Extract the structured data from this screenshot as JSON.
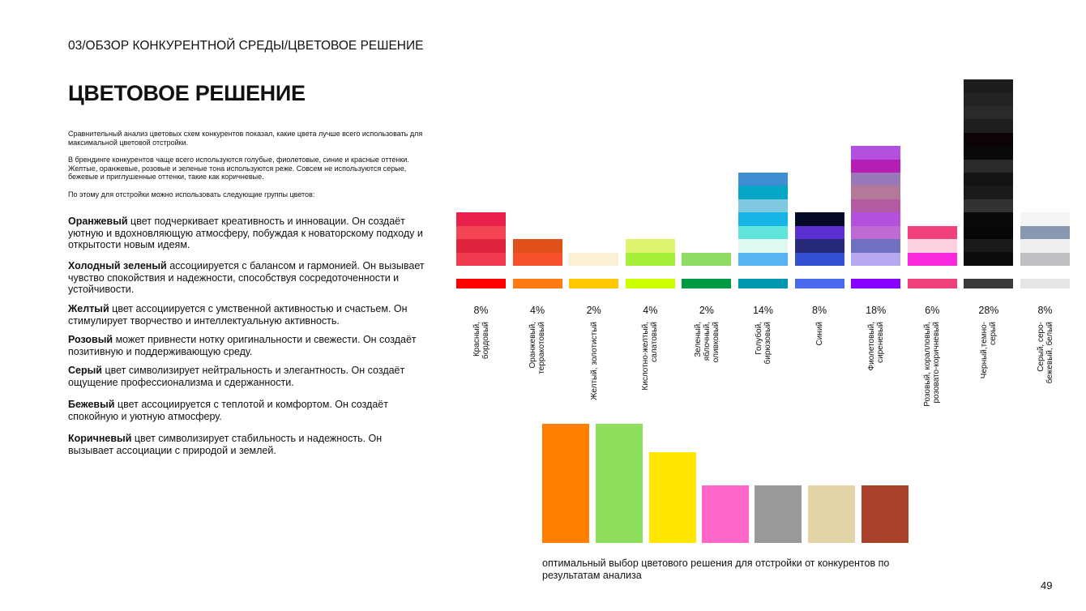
{
  "header": {
    "section": "03/ОБЗОР КОНКУРЕНТНОЙ СРЕДЫ/ЦВЕТОВОЕ РЕШЕНИЕ",
    "page": "49"
  },
  "title": "ЦВЕТОВОЕ РЕШЕНИЕ",
  "intro": [
    "Сравнительный анализ цветовых схем конкурентов показал, какие цвета лучше всего использовать для максимальной цветовой отстройки.",
    "В брендинге конкурентов чаще всего используются голубые, фиолетовые, синие и красные оттенки. Желтые, оранжевые, розовые и зеленые тона используются реже. Совсем не используются серые, бежевые и приглушенные оттенки, такие как коричневые.",
    "По этому для отстройки можно использовать следующие группы цветов:"
  ],
  "groups": [
    {
      "term": "Оранжевый",
      "text": "цвет подчеркивает креативность и инновации. Он создаёт уютную и вдохновляющую атмосферу, побуждая к новаторскому подходу и открытости новым идеям."
    },
    {
      "term": "Холодный зеленый",
      "text": "ассоциируется с балансом и гармонией. Он вызывает чувство спокойствия и надежности, способствуя сосредоточенности и устойчивости."
    },
    {
      "term": "Желтый",
      "text": "цвет ассоциируется с умственной активностью и счастьем. Он стимулирует творчество и интеллектуальную активность."
    },
    {
      "term": "Розовый",
      "text": "может привнести нотку оригинальности и свежести. Он создаёт позитивную и поддерживающую среду."
    },
    {
      "term": "Серый",
      "text": "цвет символизирует нейтральность и элегантность. Он создаёт ощущение профессионализма и сдержанности."
    },
    {
      "term": "Бежевый",
      "text": "цвет ассоциируется с теплотой и комфортом. Он создаёт спокойную и уютную атмосферу."
    },
    {
      "term": "Коричневый",
      "text": "цвет символизирует стабильность и надежность. Он вызывает ассоциации с природой и землей."
    }
  ],
  "chart_data": {
    "type": "swatch-bar",
    "categories": [
      "Красный,\nбордовый",
      "Оранжевый,\nтерракотовый",
      "Желтый, золотистый",
      "Кислотно-желтый,\nсалатовый",
      "Зеленый,\nяблочный,\nоливковый",
      "Голубой,\nбирюзовый",
      "Синий",
      "Фиолетовый,\nсиреневый",
      "Розовый, коралловый,\nрозовато-коричневый",
      "Черный,темно-\nсерый",
      "Серый, серо-\nбежевый, белый"
    ],
    "values": [
      8,
      4,
      2,
      4,
      2,
      14,
      8,
      18,
      6,
      28,
      8
    ],
    "value_labels": [
      "8%",
      "4%",
      "2%",
      "4%",
      "2%",
      "14%",
      "8%",
      "18%",
      "6%",
      "28%",
      "8%"
    ],
    "swatches": [
      [
        "#e8224a",
        "#f24452",
        "#e0233e",
        "#f03a4e"
      ],
      [
        "#e0501a",
        "#f5502a"
      ],
      [
        "#fbf0d4"
      ],
      [
        "#ddf56e",
        "#a6f03a"
      ],
      [
        "#8edc64"
      ],
      [
        "#3f8ed4",
        "#05a5c5",
        "#7ec8e0",
        "#14b4e6",
        "#5fe4dc",
        "#dffaf0",
        "#56b4f4"
      ],
      [
        "#050a28",
        "#5c2fd0",
        "#262a78",
        "#3450d0"
      ],
      [
        "#b450e0",
        "#b41eb4",
        "#9a78b8",
        "#b47898",
        "#b45aa0",
        "#b450dc",
        "#be6ad2",
        "#7070c0",
        "#b8a8f0"
      ],
      [
        "#f0407a",
        "#fcd0dc",
        "#fa28dc"
      ],
      [
        "#1c1c1c",
        "#232323",
        "#2a2a2a",
        "#1e1e1e",
        "#0c0404",
        "#0a0808",
        "#2a2a2a",
        "#141414",
        "#1a1a1a",
        "#323232",
        "#0a0a0a",
        "#060606",
        "#1a1a1a",
        "#0c0c0c"
      ],
      [
        "#f4f4f4",
        "#8898b0",
        "#eeeeee",
        "#c0c0c4"
      ]
    ],
    "base_colors": [
      "#ff0000",
      "#ff7a10",
      "#ffc800",
      "#ccff00",
      "#009944",
      "#0098b0",
      "#4a6aee",
      "#8800ff",
      "#f0407a",
      "#3a3a3a",
      "#e6e6e6"
    ]
  },
  "caption": "оптимальный выбор цветового решения для отстройки от конкурентов по результатам анализа"
}
